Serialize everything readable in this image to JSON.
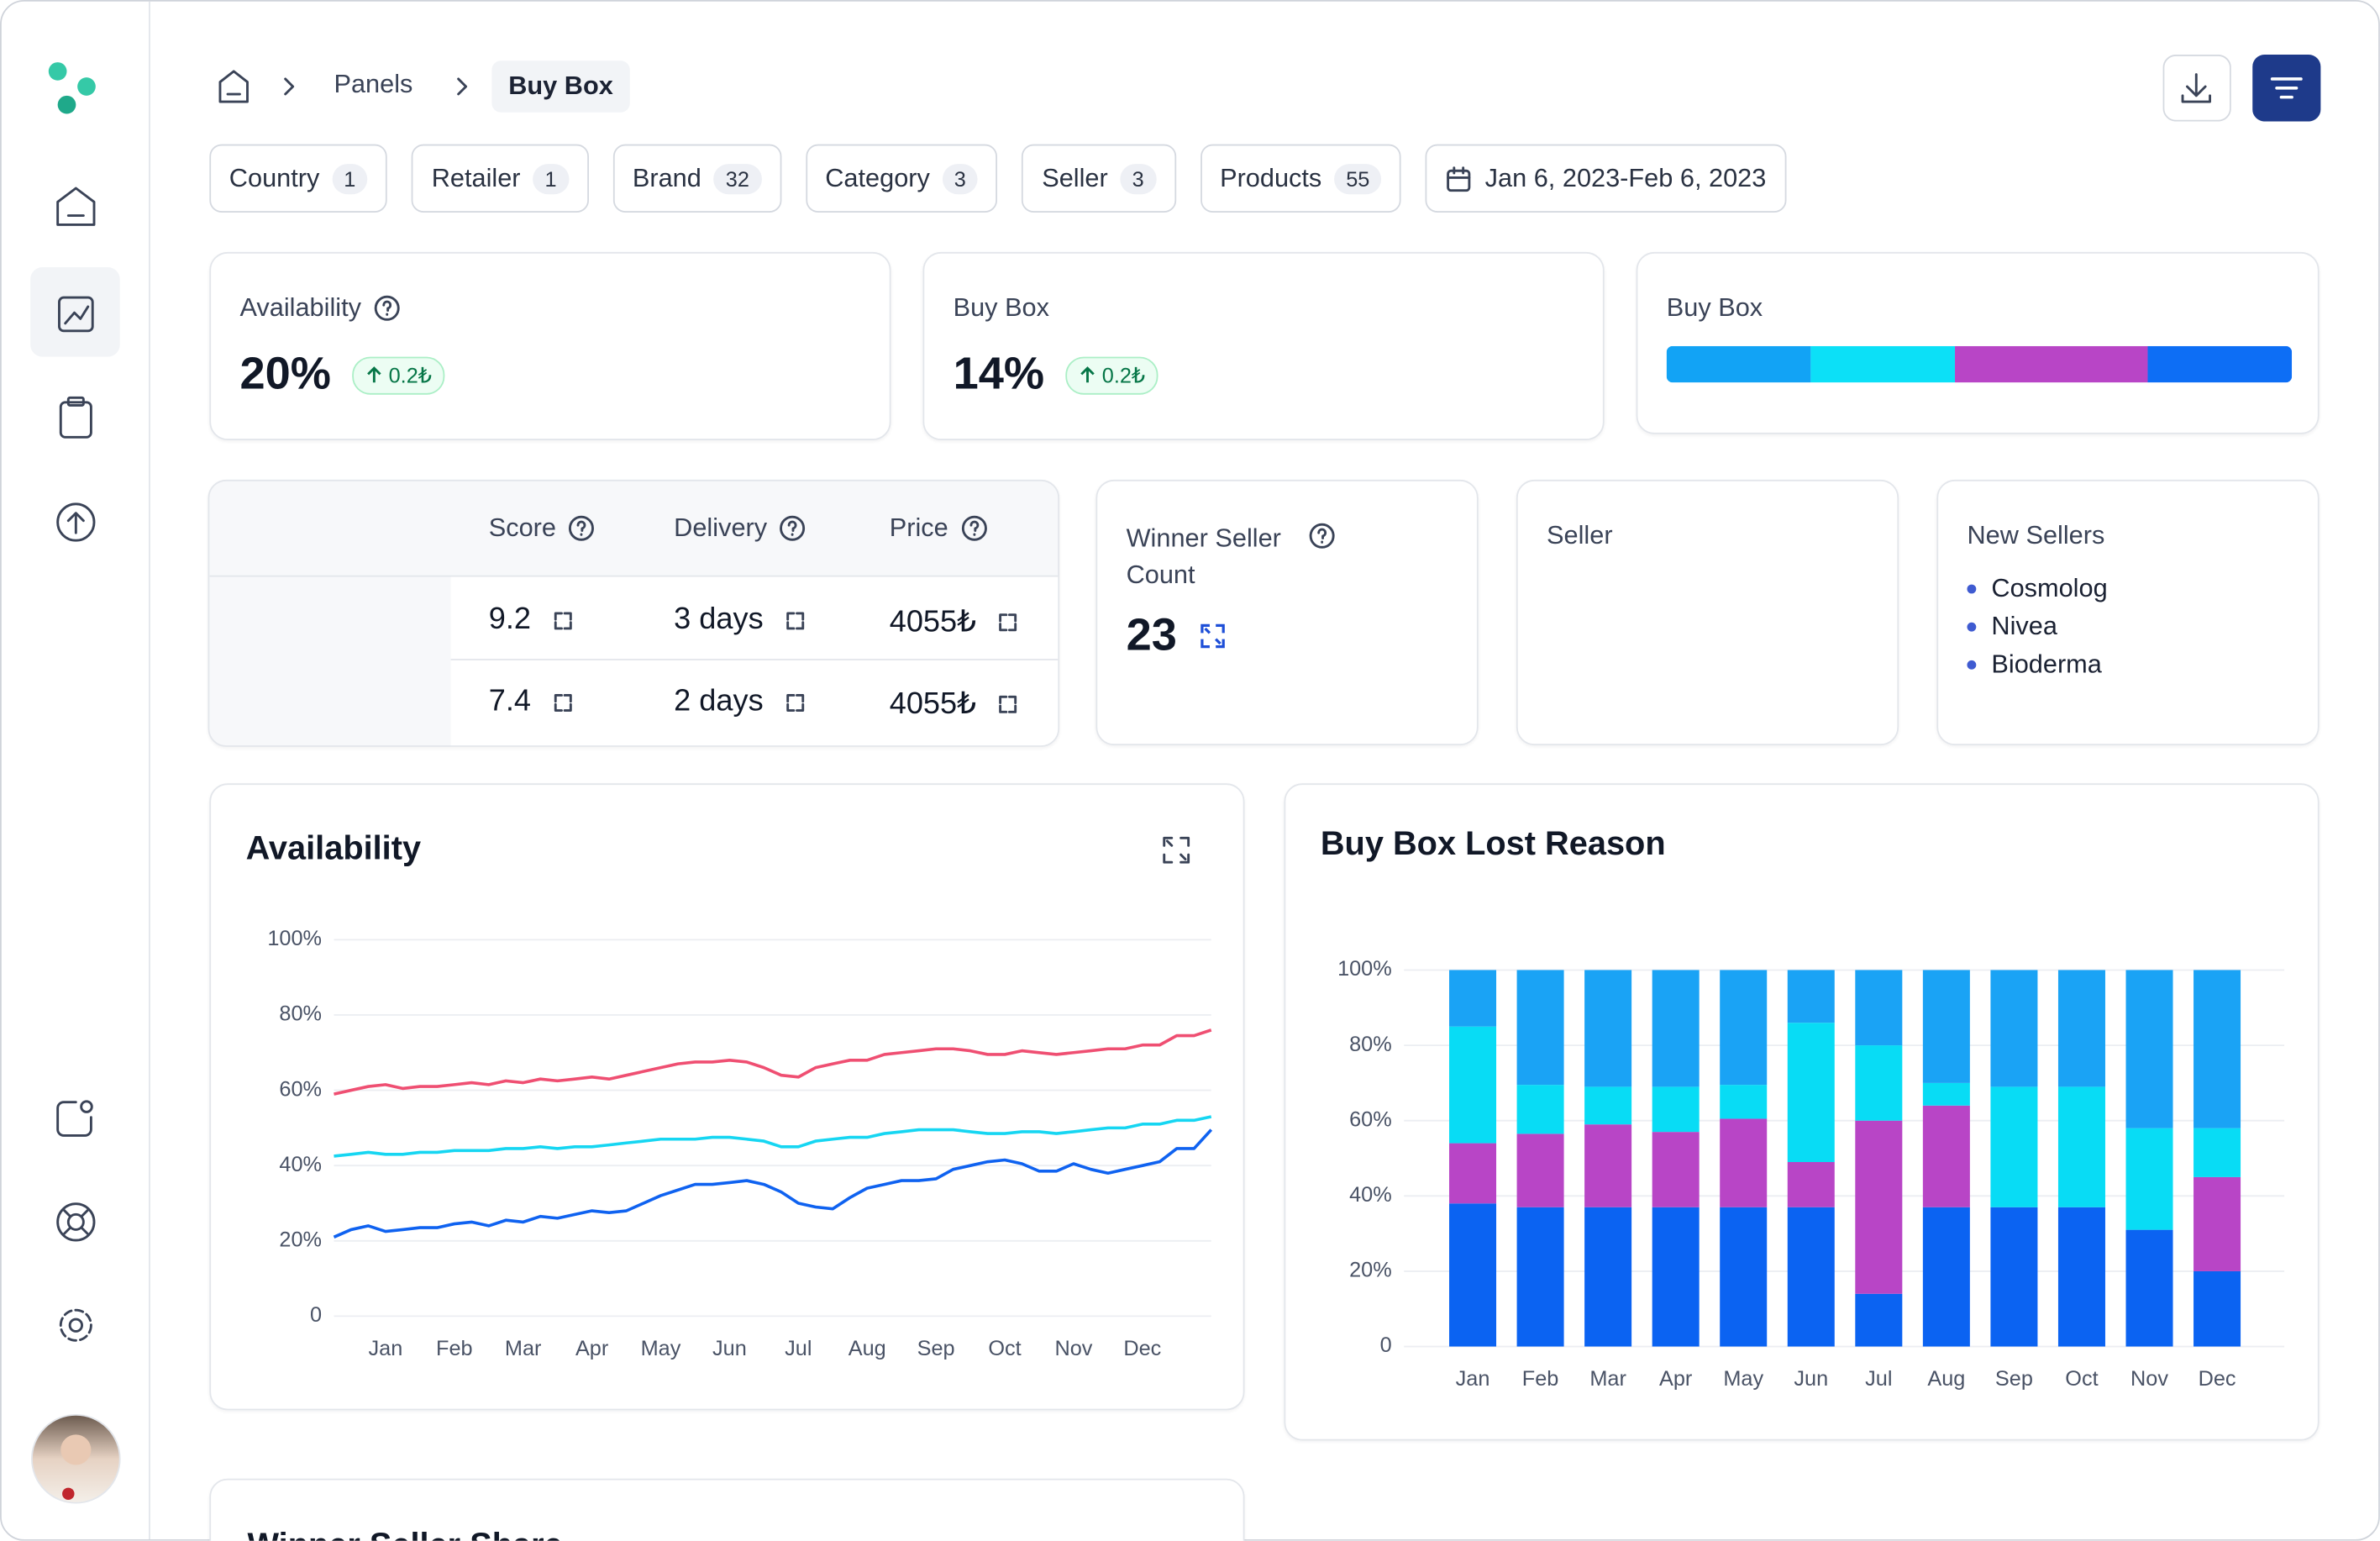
{
  "breadcrumb": [
    "Panels",
    "Buy Box"
  ],
  "filters": [
    {
      "label": "Country",
      "count": 1
    },
    {
      "label": "Retailer",
      "count": 1
    },
    {
      "label": "Brand",
      "count": 32
    },
    {
      "label": "Category",
      "count": 3
    },
    {
      "label": "Seller",
      "count": 3
    },
    {
      "label": "Products",
      "count": 55
    }
  ],
  "date_range": "Jan 6, 2023-Feb 6, 2023",
  "kpis": [
    {
      "title": "Availability",
      "value": "20%",
      "change": "0.2₺"
    },
    {
      "title": "Buy Box",
      "value": "14%",
      "change": "0.2₺"
    }
  ],
  "buy_box_bar": {
    "title": "Buy Box",
    "segments": [
      {
        "color": "#12a3f5",
        "value": 23
      },
      {
        "color": "#0ce0f7",
        "value": 23
      },
      {
        "color": "#b845c6",
        "value": 31
      },
      {
        "color": "#0d6ef5",
        "value": 23
      }
    ]
  },
  "table": {
    "columns": [
      "Score",
      "Delivery",
      "Price"
    ],
    "rows": [
      [
        "9.2",
        "3 days",
        "4055₺"
      ],
      [
        "7.4",
        "2 days",
        "4055₺"
      ]
    ]
  },
  "winner": {
    "title": "Winner Seller Count",
    "value": "23"
  },
  "seller": {
    "title": "Seller"
  },
  "new_sellers": {
    "title": "New Sellers",
    "items": [
      "Cosmolog",
      "Nivea",
      "Bioderma"
    ]
  },
  "bottom_card": {
    "title": "Winner Seller Share"
  },
  "chart_data": [
    {
      "type": "line",
      "title": "Availability",
      "categories": [
        null,
        null,
        null,
        "Jan",
        null,
        null,
        null,
        "Feb",
        null,
        null,
        null,
        "Mar",
        null,
        null,
        null,
        "Apr",
        null,
        null,
        null,
        "May",
        null,
        null,
        null,
        "Jun",
        null,
        null,
        null,
        "Jul",
        null,
        null,
        null,
        "Aug",
        null,
        null,
        null,
        "Sep",
        null,
        null,
        null,
        "Oct",
        null,
        null,
        null,
        "Nov",
        null,
        null,
        null,
        "Dec",
        null,
        null,
        null,
        null
      ],
      "series": [
        {
          "color": "#ef4f72",
          "values": [
            59,
            60,
            61,
            61.5,
            60.5,
            61,
            61,
            61.5,
            62,
            61.5,
            62.5,
            62,
            63,
            62.5,
            63,
            63.5,
            63,
            64,
            65,
            66,
            67,
            67.5,
            67.5,
            68,
            67.5,
            66,
            64,
            63.5,
            66,
            67,
            68,
            68,
            69.5,
            70,
            70.5,
            71,
            71,
            70.5,
            69.5,
            69.5,
            70.5,
            70,
            69.5,
            70,
            70.5,
            71,
            71,
            72,
            72,
            74.5,
            74.5,
            76
          ]
        },
        {
          "color": "#16d6f2",
          "values": [
            42.5,
            43,
            43.5,
            43,
            43,
            43.5,
            43.5,
            44,
            44,
            44,
            44.5,
            44.5,
            45,
            44.5,
            45,
            45,
            45.5,
            46,
            46.5,
            47,
            47,
            47,
            47.5,
            47.5,
            47,
            46.5,
            45,
            45,
            46.5,
            47,
            47.5,
            47.5,
            48.5,
            49,
            49.5,
            49.5,
            49.5,
            49,
            48.5,
            48.5,
            49,
            49,
            48.5,
            49,
            49.5,
            50,
            50,
            51,
            51,
            52,
            52,
            53
          ]
        },
        {
          "color": "#0f62f0",
          "values": [
            21,
            23,
            24,
            22.5,
            23,
            23.5,
            23.5,
            24.5,
            25,
            24,
            25.5,
            25,
            26.5,
            26,
            27,
            28,
            27.5,
            28,
            30,
            32,
            33.5,
            35,
            35,
            35.5,
            36,
            35,
            33,
            30,
            29,
            28.5,
            31.5,
            34,
            35,
            36,
            36,
            36.5,
            39,
            40,
            41,
            41.5,
            40.5,
            38.5,
            38.5,
            40.5,
            39,
            38,
            39,
            40,
            41,
            44.5,
            44.5,
            49.5
          ]
        }
      ],
      "ylim": [
        0,
        100
      ],
      "yticks": [
        {
          "value": 0,
          "label": "0"
        },
        {
          "value": 20,
          "label": "20%"
        },
        {
          "value": 40,
          "label": "40%"
        },
        {
          "value": 60,
          "label": "60%"
        },
        {
          "value": 80,
          "label": "80%"
        },
        {
          "value": 100,
          "label": "100%"
        }
      ],
      "grid": true
    },
    {
      "type": "stacked_bar",
      "title": "Buy Box Lost Reason",
      "categories": [
        "Jan",
        "Feb",
        "Mar",
        "Apr",
        "May",
        "Jun",
        "Jul",
        "Aug",
        "Sep",
        "Oct",
        "Nov",
        "Dec"
      ],
      "series": [
        {
          "color": "#0b63f2",
          "values": [
            38,
            37,
            37,
            37,
            37,
            37,
            14,
            37,
            37,
            37,
            31,
            20
          ]
        },
        {
          "color": "#b845c6",
          "values": [
            16,
            19.5,
            22,
            20,
            23.5,
            12,
            46,
            27,
            0,
            0,
            0,
            25
          ]
        },
        {
          "color": "#08dcf5",
          "values": [
            31,
            13,
            10,
            12,
            9,
            37,
            20,
            6,
            32,
            32,
            27,
            13
          ]
        },
        {
          "color": "#1aa3f5",
          "values": [
            15,
            30.5,
            31,
            31,
            30.5,
            14,
            20,
            30,
            31,
            31,
            42,
            42
          ]
        }
      ],
      "ylim": [
        0,
        100
      ],
      "yticks": [
        {
          "value": 0,
          "label": "0"
        },
        {
          "value": 20,
          "label": "20%"
        },
        {
          "value": 40,
          "label": "40%"
        },
        {
          "value": 60,
          "label": "60%"
        },
        {
          "value": 80,
          "label": "80%"
        },
        {
          "value": 100,
          "label": "100%"
        }
      ],
      "grid": true
    }
  ]
}
